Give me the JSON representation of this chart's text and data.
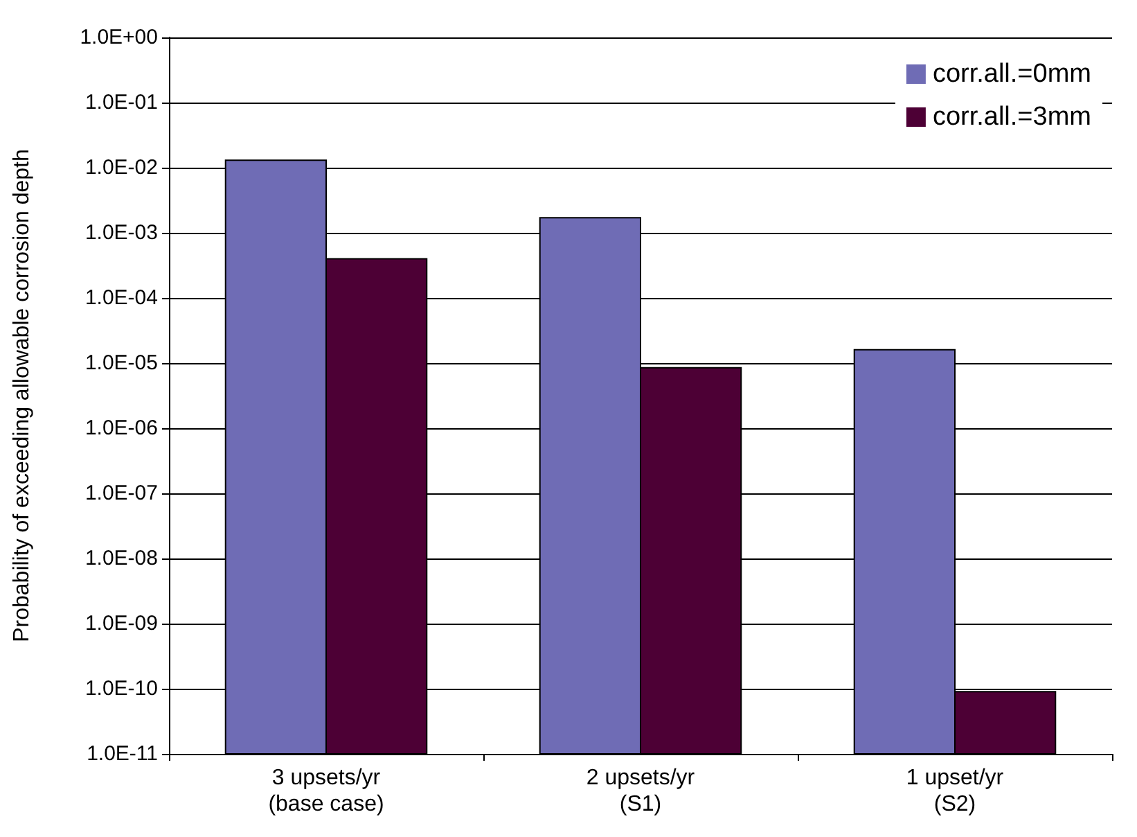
{
  "chart_data": {
    "type": "bar",
    "ylabel": "Probability of exceeding allowable corrosion depth",
    "categories": [
      "3 upsets/yr\n(base case)",
      "2 upsets/yr\n(S1)",
      "1 upset/yr\n(S2)"
    ],
    "series": [
      {
        "name": "corr.all.=0mm",
        "color": "#6f6cb5",
        "values": [
          0.013,
          0.0017,
          1.6e-05
        ]
      },
      {
        "name": "corr.all.=3mm",
        "color": "#4d0035",
        "values": [
          0.0004,
          8.5e-06,
          9e-11
        ]
      }
    ],
    "log": "y",
    "ylim": [
      1e-11,
      1
    ],
    "yticks": [
      {
        "value": 1e-11,
        "label": "1.0E-11"
      },
      {
        "value": 1e-10,
        "label": "1.0E-10"
      },
      {
        "value": 1e-09,
        "label": "1.0E-09"
      },
      {
        "value": 1e-08,
        "label": "1.0E-08"
      },
      {
        "value": 1e-07,
        "label": "1.0E-07"
      },
      {
        "value": 1e-06,
        "label": "1.0E-06"
      },
      {
        "value": 1e-05,
        "label": "1.0E-05"
      },
      {
        "value": 0.0001,
        "label": "1.0E-04"
      },
      {
        "value": 0.001,
        "label": "1.0E-03"
      },
      {
        "value": 0.01,
        "label": "1.0E-02"
      },
      {
        "value": 0.1,
        "label": "1.0E-01"
      },
      {
        "value": 1,
        "label": "1.0E+00"
      }
    ],
    "grid": "y",
    "legend": "top right"
  }
}
